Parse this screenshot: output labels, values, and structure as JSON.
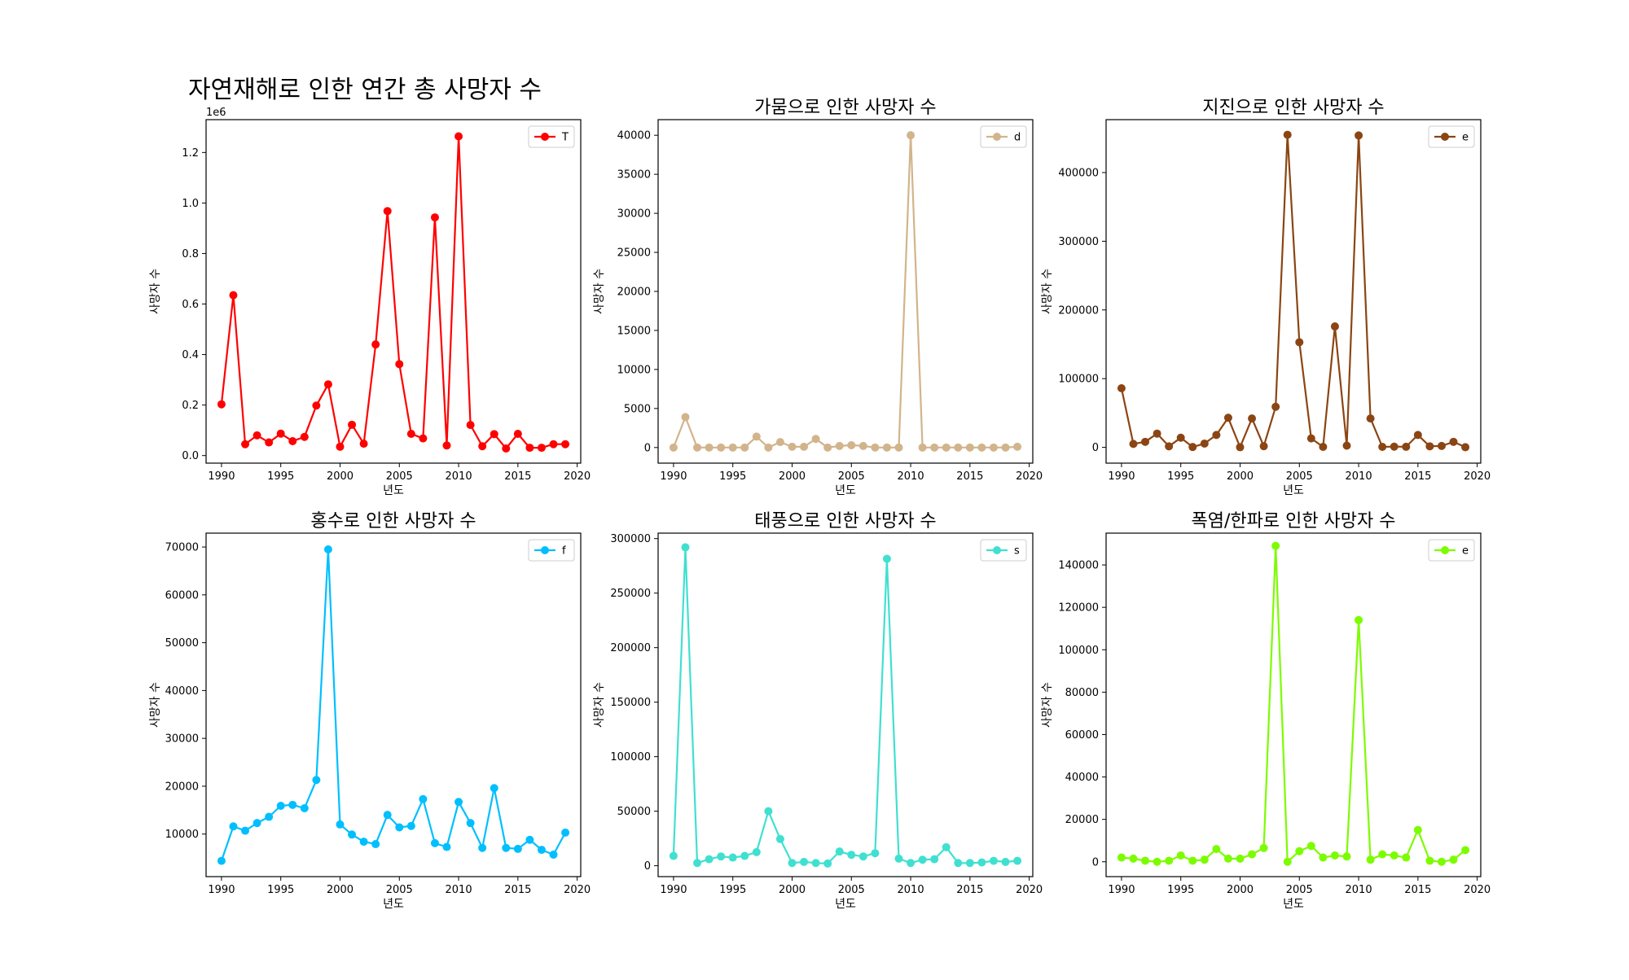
{
  "figure": {
    "suptitle": "자연재해로 인한 연간 총 사망자 수"
  },
  "chart_data": [
    {
      "type": "line",
      "title": "",
      "xlabel": "년도",
      "ylabel": "사망자 수",
      "offset_text": "1e6",
      "color": "#ff0000",
      "legend": "T",
      "legend_position": "top-right",
      "grid": false,
      "xlim": [
        1988.7,
        2020.3
      ],
      "ylim": [
        -30000,
        1330000
      ],
      "xticks": [
        1990,
        1995,
        2000,
        2005,
        2010,
        2015,
        2020
      ],
      "yticks": [
        0,
        200000,
        400000,
        600000,
        800000,
        1000000,
        1200000
      ],
      "ytick_labels": [
        "0.0",
        "0.2",
        "0.4",
        "0.6",
        "0.8",
        "1.0",
        "1.2"
      ],
      "x": [
        1990,
        1991,
        1992,
        1993,
        1994,
        1995,
        1996,
        1997,
        1998,
        1999,
        2000,
        2001,
        2002,
        2003,
        2004,
        2005,
        2006,
        2007,
        2008,
        2009,
        2010,
        2011,
        2012,
        2013,
        2014,
        2015,
        2016,
        2017,
        2018,
        2019
      ],
      "values": [
        203000,
        635000,
        45000,
        80000,
        52000,
        87000,
        57000,
        74000,
        198000,
        282000,
        35000,
        122000,
        47000,
        440000,
        968000,
        362000,
        86000,
        68000,
        943000,
        40000,
        1264000,
        121000,
        37000,
        85000,
        28000,
        86000,
        31000,
        31000,
        45000,
        45000
      ]
    },
    {
      "type": "line",
      "title": "가뭄으로 인한 사망자 수",
      "xlabel": "년도",
      "ylabel": "사망자 수",
      "color": "#d2b48c",
      "legend": "d",
      "legend_position": "top-right",
      "grid": false,
      "xlim": [
        1988.7,
        2020.3
      ],
      "ylim": [
        -2000,
        42000
      ],
      "xticks": [
        1990,
        1995,
        2000,
        2005,
        2010,
        2015,
        2020
      ],
      "yticks": [
        0,
        5000,
        10000,
        15000,
        20000,
        25000,
        30000,
        35000,
        40000
      ],
      "ytick_labels": [
        "0",
        "5000",
        "10000",
        "15000",
        "20000",
        "25000",
        "30000",
        "35000",
        "40000"
      ],
      "x": [
        1990,
        1991,
        1992,
        1993,
        1994,
        1995,
        1996,
        1997,
        1998,
        1999,
        2000,
        2001,
        2002,
        2003,
        2004,
        2005,
        2006,
        2007,
        2008,
        2009,
        2010,
        2011,
        2012,
        2013,
        2014,
        2015,
        2016,
        2017,
        2018,
        2019
      ],
      "values": [
        0,
        3900,
        0,
        0,
        0,
        0,
        0,
        1400,
        0,
        700,
        100,
        100,
        1100,
        0,
        200,
        300,
        200,
        0,
        0,
        0,
        40000,
        0,
        0,
        0,
        0,
        0,
        0,
        0,
        0,
        100
      ]
    },
    {
      "type": "line",
      "title": "지진으로 인한 사망자 수",
      "xlabel": "년도",
      "ylabel": "사망자 수",
      "color": "#8b4513",
      "legend": "e",
      "legend_position": "top-right",
      "grid": false,
      "xlim": [
        1988.7,
        2020.3
      ],
      "ylim": [
        -23000,
        477000
      ],
      "xticks": [
        1990,
        1995,
        2000,
        2005,
        2010,
        2015,
        2020
      ],
      "yticks": [
        0,
        100000,
        200000,
        300000,
        400000
      ],
      "ytick_labels": [
        "0",
        "100000",
        "200000",
        "300000",
        "400000"
      ],
      "x": [
        1990,
        1991,
        1992,
        1993,
        1994,
        1995,
        1996,
        1997,
        1998,
        1999,
        2000,
        2001,
        2002,
        2003,
        2004,
        2005,
        2006,
        2007,
        2008,
        2009,
        2010,
        2011,
        2012,
        2013,
        2014,
        2015,
        2016,
        2017,
        2018,
        2019
      ],
      "values": [
        86000,
        5000,
        8000,
        20000,
        1500,
        14000,
        500,
        5500,
        18000,
        43000,
        200,
        42000,
        1700,
        59000,
        455000,
        153000,
        13000,
        700,
        176000,
        2500,
        454000,
        42000,
        700,
        1000,
        800,
        18000,
        1500,
        2000,
        8000,
        200
      ]
    },
    {
      "type": "line",
      "title": "홍수로 인한 사망자 수",
      "xlabel": "년도",
      "ylabel": "사망자 수",
      "color": "#00bfff",
      "legend": "f",
      "legend_position": "top-right",
      "grid": false,
      "xlim": [
        1988.7,
        2020.3
      ],
      "ylim": [
        1100,
        72900
      ],
      "xticks": [
        1990,
        1995,
        2000,
        2005,
        2010,
        2015,
        2020
      ],
      "yticks": [
        10000,
        20000,
        30000,
        40000,
        50000,
        60000,
        70000
      ],
      "ytick_labels": [
        "10000",
        "20000",
        "30000",
        "40000",
        "50000",
        "60000",
        "70000"
      ],
      "x": [
        1990,
        1991,
        1992,
        1993,
        1994,
        1995,
        1996,
        1997,
        1998,
        1999,
        2000,
        2001,
        2002,
        2003,
        2004,
        2005,
        2006,
        2007,
        2008,
        2009,
        2010,
        2011,
        2012,
        2013,
        2014,
        2015,
        2016,
        2017,
        2018,
        2019
      ],
      "values": [
        4400,
        11600,
        10700,
        12300,
        13600,
        15900,
        16100,
        15400,
        21300,
        69500,
        12000,
        9900,
        8400,
        7900,
        14000,
        11400,
        11700,
        17300,
        8100,
        7300,
        16700,
        12300,
        7100,
        19600,
        7100,
        6900,
        8800,
        6700,
        5700,
        10300
      ]
    },
    {
      "type": "line",
      "title": "태풍으로 인한 사망자 수",
      "xlabel": "년도",
      "ylabel": "사망자 수",
      "color": "#40e0d0",
      "legend": "s",
      "legend_position": "top-right",
      "grid": false,
      "xlim": [
        1988.7,
        2020.3
      ],
      "ylim": [
        -10000,
        305000
      ],
      "xticks": [
        1990,
        1995,
        2000,
        2005,
        2010,
        2015,
        2020
      ],
      "yticks": [
        0,
        50000,
        100000,
        150000,
        200000,
        250000,
        300000
      ],
      "ytick_labels": [
        "0",
        "50000",
        "100000",
        "150000",
        "200000",
        "250000",
        "300000"
      ],
      "x": [
        1990,
        1991,
        1992,
        1993,
        1994,
        1995,
        1996,
        1997,
        1998,
        1999,
        2000,
        2001,
        2002,
        2003,
        2004,
        2005,
        2006,
        2007,
        2008,
        2009,
        2010,
        2011,
        2012,
        2013,
        2014,
        2015,
        2016,
        2017,
        2018,
        2019
      ],
      "values": [
        9000,
        292000,
        2500,
        6000,
        8500,
        7500,
        9000,
        12500,
        50000,
        24500,
        2500,
        3500,
        2500,
        2000,
        13000,
        10000,
        8500,
        11500,
        281500,
        6500,
        2500,
        5500,
        6000,
        17000,
        2500,
        2500,
        3000,
        4500,
        3500,
        4500
      ]
    },
    {
      "type": "line",
      "title": "폭염/한파로 인한 사망자 수",
      "xlabel": "년도",
      "ylabel": "사망자 수",
      "color": "#7cfc00",
      "legend": "e",
      "legend_position": "top-right",
      "grid": false,
      "xlim": [
        1988.7,
        2020.3
      ],
      "ylim": [
        -7000,
        155000
      ],
      "xticks": [
        1990,
        1995,
        2000,
        2005,
        2010,
        2015,
        2020
      ],
      "yticks": [
        0,
        20000,
        40000,
        60000,
        80000,
        100000,
        120000,
        140000
      ],
      "ytick_labels": [
        "0",
        "20000",
        "40000",
        "60000",
        "80000",
        "100000",
        "120000",
        "140000"
      ],
      "x": [
        1990,
        1991,
        1992,
        1993,
        1994,
        1995,
        1996,
        1997,
        1998,
        1999,
        2000,
        2001,
        2002,
        2003,
        2004,
        2005,
        2006,
        2007,
        2008,
        2009,
        2010,
        2011,
        2012,
        2013,
        2014,
        2015,
        2016,
        2017,
        2018,
        2019
      ],
      "values": [
        2000,
        1500,
        500,
        0,
        500,
        3000,
        500,
        1000,
        6000,
        1500,
        1500,
        3500,
        6500,
        149000,
        0,
        5000,
        7500,
        2000,
        3000,
        2500,
        114000,
        1000,
        3500,
        3000,
        2000,
        15000,
        500,
        0,
        1000,
        5500
      ]
    }
  ]
}
